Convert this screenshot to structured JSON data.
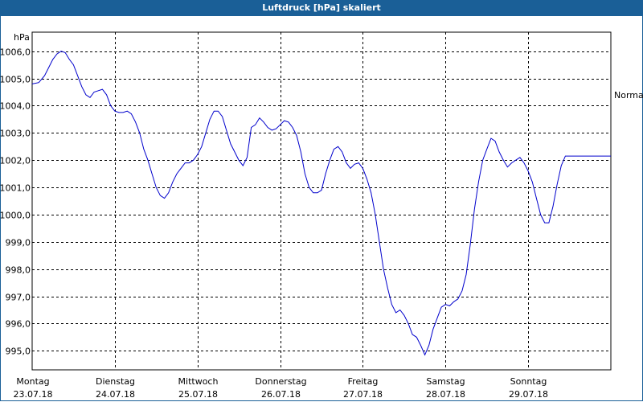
{
  "chart_data": {
    "type": "line",
    "title": "Luftdruck [hPa] skaliert",
    "ylabel": "hPa",
    "ylim": [
      994.3,
      1006.7
    ],
    "y_ticks": [
      "995,0",
      "996,0",
      "997,0",
      "998,0",
      "999,0",
      "1000,0",
      "1001,0",
      "1002,0",
      "1003,0",
      "1004,0",
      "1005,0",
      "1006,0"
    ],
    "y_tick_values": [
      995,
      996,
      997,
      998,
      999,
      1000,
      1001,
      1002,
      1003,
      1004,
      1005,
      1006
    ],
    "x_ticks": [
      {
        "day": "Montag",
        "date": "23.07.18"
      },
      {
        "day": "Dienstag",
        "date": "24.07.18"
      },
      {
        "day": "Mittwoch",
        "date": "25.07.18"
      },
      {
        "day": "Donnerstag",
        "date": "26.07.18"
      },
      {
        "day": "Freitag",
        "date": "27.07.18"
      },
      {
        "day": "Samstag",
        "date": "28.07.18"
      },
      {
        "day": "Sonntag",
        "date": "29.07.18"
      }
    ],
    "xlim_days": [
      0,
      7
    ],
    "grid": true,
    "right_label": "Normal",
    "right_label_value": 1004.4,
    "series_color": "#0000cc",
    "x": [
      0,
      0.08,
      0.15,
      0.2,
      0.25,
      0.3,
      0.35,
      0.4,
      0.45,
      0.5,
      0.55,
      0.6,
      0.65,
      0.7,
      0.75,
      0.8,
      0.85,
      0.9,
      0.95,
      1.0,
      1.05,
      1.1,
      1.15,
      1.2,
      1.25,
      1.3,
      1.35,
      1.4,
      1.45,
      1.5,
      1.55,
      1.6,
      1.65,
      1.7,
      1.75,
      1.8,
      1.85,
      1.9,
      1.95,
      2.0,
      2.05,
      2.1,
      2.15,
      2.2,
      2.25,
      2.3,
      2.35,
      2.4,
      2.45,
      2.5,
      2.55,
      2.6,
      2.65,
      2.7,
      2.75,
      2.8,
      2.85,
      2.9,
      2.95,
      3.0,
      3.05,
      3.1,
      3.15,
      3.2,
      3.25,
      3.3,
      3.35,
      3.4,
      3.45,
      3.5,
      3.55,
      3.6,
      3.65,
      3.7,
      3.75,
      3.8,
      3.85,
      3.9,
      3.95,
      4.0,
      4.05,
      4.1,
      4.15,
      4.2,
      4.25,
      4.3,
      4.35,
      4.4,
      4.45,
      4.5,
      4.55,
      4.6,
      4.65,
      4.7,
      4.75,
      4.8,
      4.85,
      4.9,
      4.95,
      5.0,
      5.05,
      5.1,
      5.15,
      5.2,
      5.25,
      5.3,
      5.35,
      5.4,
      5.45,
      5.5,
      5.55,
      5.6,
      5.65,
      5.7,
      5.75,
      5.8,
      5.85,
      5.9,
      5.95,
      6.0,
      6.05,
      6.1,
      6.15,
      6.2,
      6.25,
      6.3,
      6.35,
      6.4,
      6.45,
      6.5,
      6.55,
      6.6,
      6.65,
      6.7,
      6.75,
      6.8,
      6.85,
      6.9,
      6.95,
      7.0
    ],
    "y": [
      1004.8,
      1004.85,
      1005.1,
      1005.4,
      1005.7,
      1005.9,
      1006.0,
      1005.95,
      1005.7,
      1005.5,
      1005.1,
      1004.7,
      1004.4,
      1004.3,
      1004.5,
      1004.55,
      1004.6,
      1004.4,
      1004.0,
      1003.8,
      1003.75,
      1003.75,
      1003.8,
      1003.7,
      1003.4,
      1003.0,
      1002.4,
      1002.0,
      1001.5,
      1001.0,
      1000.7,
      1000.6,
      1000.8,
      1001.2,
      1001.5,
      1001.7,
      1001.9,
      1001.9,
      1002.0,
      1002.2,
      1002.5,
      1003.0,
      1003.5,
      1003.8,
      1003.8,
      1003.6,
      1003.1,
      1002.6,
      1002.3,
      1002.0,
      1001.8,
      1002.1,
      1003.2,
      1003.3,
      1003.55,
      1003.4,
      1003.2,
      1003.1,
      1003.15,
      1003.3,
      1003.45,
      1003.4,
      1003.2,
      1002.9,
      1002.3,
      1001.5,
      1001.0,
      1000.8,
      1000.8,
      1000.9,
      1001.5,
      1002.0,
      1002.4,
      1002.5,
      1002.3,
      1001.9,
      1001.7,
      1001.85,
      1001.9,
      1001.7,
      1001.3,
      1000.8,
      1000.0,
      999.0,
      998.0,
      997.3,
      996.7,
      996.4,
      996.5,
      996.3,
      996.0,
      995.6,
      995.5,
      995.2,
      994.85,
      995.2,
      995.8,
      996.2,
      996.6,
      996.7,
      996.65,
      996.8,
      996.9,
      997.2,
      997.8,
      998.9,
      1000.2,
      1001.2,
      1002.0,
      1002.4,
      1002.8,
      1002.7,
      1002.3,
      1002.0,
      1001.75,
      1001.9,
      1002.0,
      1002.1,
      1001.9,
      1001.6,
      1001.2,
      1000.6,
      1000.0,
      999.7,
      999.7,
      1000.3,
      1001.1,
      1001.8,
      1002.15,
      1002.15,
      1002.15,
      1002.15,
      1002.15,
      1002.15,
      1002.15,
      1002.15,
      1002.15,
      1002.15,
      1002.15,
      1002.15
    ]
  }
}
